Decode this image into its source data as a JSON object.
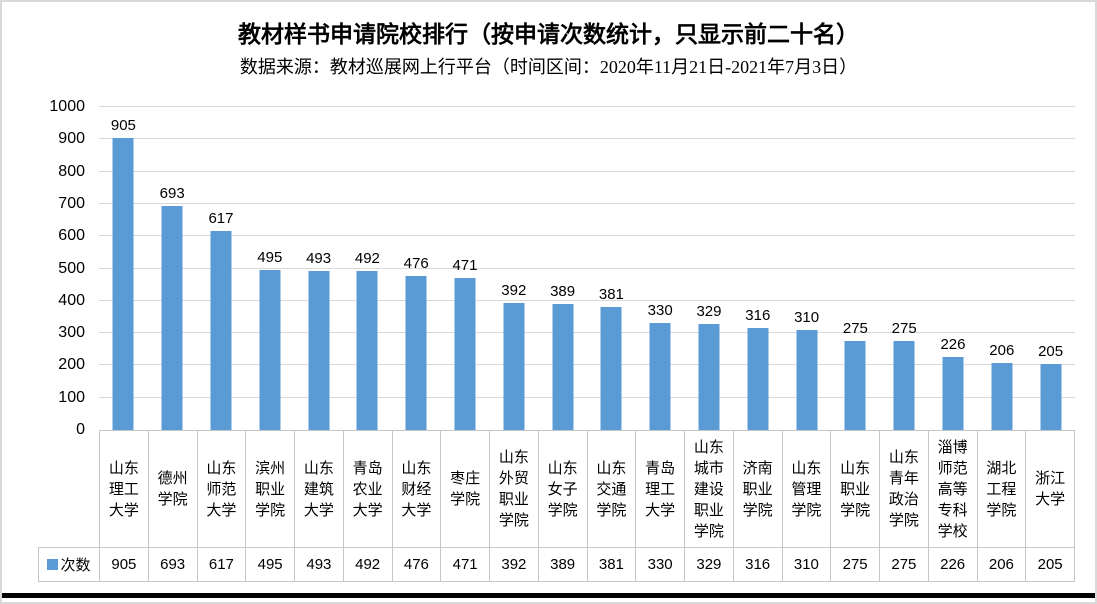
{
  "chart_data": {
    "type": "bar",
    "title": "教材样书申请院校排行（按申请次数统计，只显示前二十名）",
    "subtitle": "数据来源：教材巡展网上行平台（时间区间：2020年11月21日-2021年7月3日）",
    "categories": [
      "山东理工大学",
      "德州学院",
      "山东师范大学",
      "滨州职业学院",
      "山东建筑大学",
      "青岛农业大学",
      "山东财经大学",
      "枣庄学院",
      "山东外贸职业学院",
      "山东女子学院",
      "山东交通学院",
      "青岛理工大学",
      "山东城市建设职业学院",
      "济南职业学院",
      "山东管理学院",
      "山东职业学院",
      "山东青年政治学院",
      "淄博师范高等专科学校",
      "湖北工程学院",
      "浙江大学"
    ],
    "series": [
      {
        "name": "次数",
        "values": [
          905,
          693,
          617,
          495,
          493,
          492,
          476,
          471,
          392,
          389,
          381,
          330,
          329,
          316,
          310,
          275,
          275,
          226,
          206,
          205
        ]
      }
    ],
    "ylim": [
      0,
      1000
    ],
    "yticks": [
      0,
      100,
      200,
      300,
      400,
      500,
      600,
      700,
      800,
      900,
      1000
    ],
    "grid": true,
    "legend_position": "data-table-bottom-left",
    "colors": {
      "bar": "#5B9BD5",
      "gridline": "#D9D9D9",
      "table_border": "#C6C6C6",
      "text": "#000000"
    }
  }
}
